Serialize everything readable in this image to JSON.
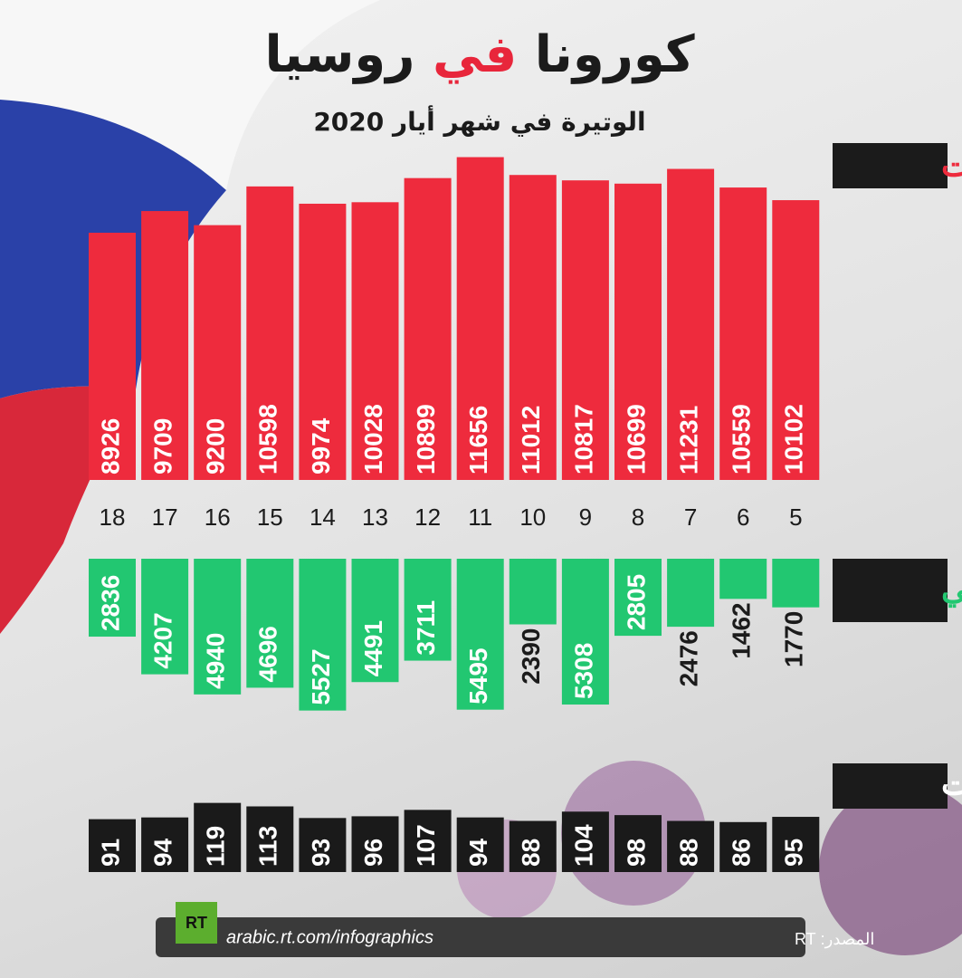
{
  "header": {
    "title": [
      "كورونا",
      "في",
      "روسيا"
    ],
    "subtitle": "الوتيرة في شهر أيار 2020"
  },
  "chart_data": [
    {
      "type": "bar",
      "title": "الإصابات",
      "color": "#ee2b3d",
      "categories": [
        "18",
        "17",
        "16",
        "15",
        "14",
        "13",
        "12",
        "11",
        "10",
        "9",
        "8",
        "7",
        "6",
        "5"
      ],
      "values": [
        8926,
        9709,
        9200,
        10598,
        9974,
        10028,
        10899,
        11656,
        11012,
        10817,
        10699,
        11231,
        10559,
        10102
      ],
      "ylim": [
        0,
        12000
      ]
    },
    {
      "type": "bar",
      "title": "التعافي",
      "color": "#22c771",
      "values": [
        2836,
        4207,
        4940,
        4696,
        5527,
        4491,
        3711,
        5495,
        2390,
        5308,
        2805,
        2476,
        1462,
        1770
      ],
      "ylim": [
        0,
        6000
      ]
    },
    {
      "type": "bar",
      "title": "الوفيات",
      "color": "#1a1a1a",
      "values": [
        91,
        94,
        119,
        113,
        93,
        96,
        107,
        94,
        88,
        104,
        98,
        88,
        86,
        95
      ],
      "ylim": [
        0,
        120
      ]
    }
  ],
  "footer": {
    "logo": "RT",
    "url": "arabic.rt.com/infographics",
    "source": "المصدر: RT"
  }
}
